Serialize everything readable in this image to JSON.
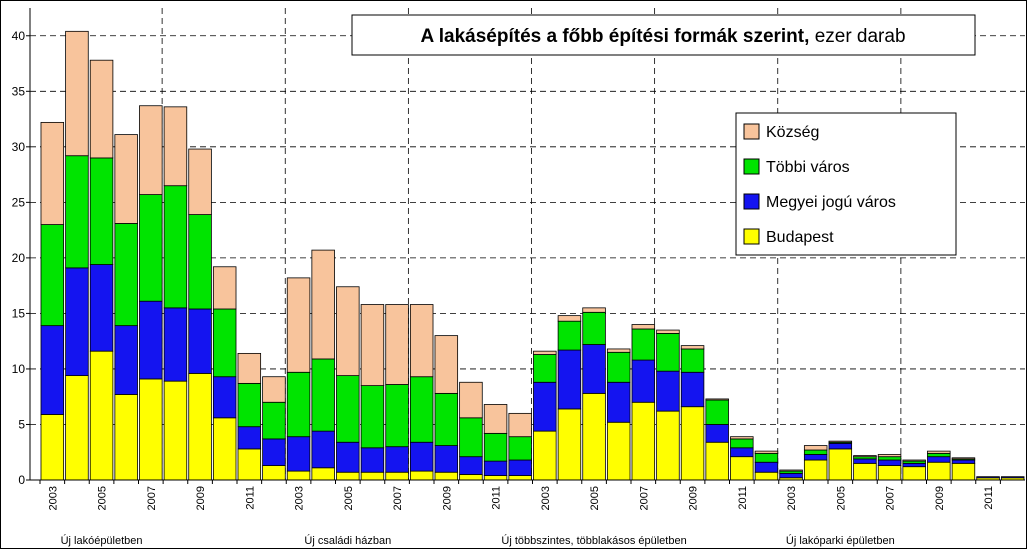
{
  "chart_data": {
    "type": "stacked_bar",
    "title": "A lakásépítés a főbb építési formák szerint,",
    "unit": "ezer darab",
    "categories": [
      "2003",
      null,
      "2005",
      null,
      "2007",
      null,
      "2009",
      null,
      "2011",
      null,
      "2003",
      null,
      "2005",
      null,
      "2007",
      null,
      "2009",
      null,
      "2011",
      null,
      "2003",
      null,
      "2005",
      null,
      "2007",
      null,
      "2009",
      null,
      "2011",
      null,
      "2003",
      null,
      "2005",
      null,
      "2007",
      null,
      "2009",
      null,
      "2011",
      null
    ],
    "groups": [
      "Új lakóépületben",
      "Új családi házban",
      "Új többszintes, többlakásos épületben",
      "Új lakóparki épületben"
    ],
    "series": [
      {
        "name": "Budapest",
        "color": "#ffff00",
        "values": [
          5.9,
          9.4,
          11.6,
          7.7,
          9.1,
          8.9,
          9.6,
          5.6,
          2.8,
          1.3,
          0.8,
          1.1,
          0.7,
          0.7,
          0.7,
          0.8,
          0.7,
          0.5,
          0.4,
          0.4,
          4.4,
          6.4,
          7.8,
          5.2,
          7.0,
          6.2,
          6.6,
          3.4,
          2.1,
          0.7,
          0.2,
          1.8,
          2.8,
          1.5,
          1.3,
          1.2,
          1.6,
          1.5,
          0.2,
          0.2
        ]
      },
      {
        "name": "Megyei jogú város",
        "color": "#1414f0",
        "values": [
          8.0,
          9.7,
          7.8,
          6.2,
          7.0,
          6.6,
          5.8,
          3.7,
          2.0,
          2.4,
          3.1,
          3.3,
          2.7,
          2.2,
          2.3,
          2.6,
          2.4,
          1.6,
          1.3,
          1.4,
          4.4,
          5.3,
          4.4,
          3.6,
          3.8,
          3.6,
          3.1,
          1.6,
          0.8,
          0.9,
          0.4,
          0.5,
          0.5,
          0.4,
          0.5,
          0.3,
          0.5,
          0.3,
          0.1,
          0.1
        ]
      },
      {
        "name": "Többi város",
        "color": "#00e400",
        "values": [
          9.1,
          10.1,
          9.6,
          9.2,
          9.6,
          11.0,
          8.5,
          6.1,
          3.9,
          3.3,
          5.8,
          6.5,
          6.0,
          5.6,
          5.6,
          5.9,
          4.7,
          3.5,
          2.5,
          2.1,
          2.5,
          2.6,
          2.9,
          2.7,
          2.8,
          3.4,
          2.1,
          2.2,
          0.8,
          0.8,
          0.2,
          0.4,
          0.1,
          0.2,
          0.3,
          0.2,
          0.3,
          0.1,
          0.0,
          0.0
        ]
      },
      {
        "name": "Község",
        "color": "#f8c49c",
        "values": [
          9.2,
          11.2,
          8.8,
          8.0,
          8.0,
          7.1,
          5.9,
          3.8,
          2.7,
          2.3,
          8.5,
          9.8,
          8.0,
          7.3,
          7.2,
          6.5,
          5.2,
          3.2,
          2.6,
          2.1,
          0.3,
          0.5,
          0.4,
          0.3,
          0.4,
          0.3,
          0.3,
          0.1,
          0.2,
          0.2,
          0.1,
          0.4,
          0.1,
          0.1,
          0.2,
          0.1,
          0.2,
          0.1,
          0.0,
          0.0
        ]
      }
    ],
    "ylim": [
      0,
      42.5
    ],
    "yticks": [
      0,
      5,
      10,
      15,
      20,
      25,
      30,
      35,
      40
    ],
    "grid": true
  }
}
